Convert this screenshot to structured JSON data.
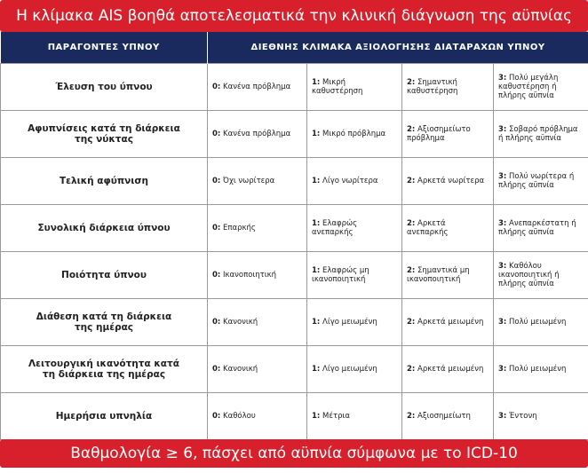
{
  "header": {
    "title": "Η κλίμακα AIS βοηθά αποτελεσματικά την κλινική διάγνωση της αϋπνίας"
  },
  "table": {
    "headers": [
      "ΠΑΡΑΓΟΝΤΕΣ ΥΠΝΟΥ",
      "ΔΙΕΘΝΗΣ ΚΛΙΜΑΚΑ ΑΞΙΟΛΟΓΗΣΗΣ ΔΙΑΤΑΡΑΧΩΝ ΥΠΝΟΥ"
    ],
    "rows": [
      {
        "factor": "Έλευση του ύπνου",
        "options": [
          {
            "score": "0:",
            "text": "Κανένα πρόβλημα"
          },
          {
            "score": "1:",
            "text": "Μικρή καθυστέρηση"
          },
          {
            "score": "2:",
            "text": "Σημαντική καθυστέρηση"
          },
          {
            "score": "3:",
            "text": "Πολύ μεγάλη καθυστέρηση ή πλήρης αϋπνία"
          }
        ]
      },
      {
        "factor": "Αφυπνίσεις κατά τη διάρκεια της νύκτας",
        "options": [
          {
            "score": "0:",
            "text": "Κανένα πρόβλημα"
          },
          {
            "score": "1:",
            "text": "Μικρό πρόβλημα"
          },
          {
            "score": "2:",
            "text": "Αξιοσημείωτο πρόβλημα"
          },
          {
            "score": "3:",
            "text": "Σοβαρό πρόβλημα ή πλήρης αϋπνία"
          }
        ]
      },
      {
        "factor": "Τελική αφύπνιση",
        "options": [
          {
            "score": "0:",
            "text": "Όχι νωρίτερα"
          },
          {
            "score": "1:",
            "text": "Λίγο νωρίτερα"
          },
          {
            "score": "2:",
            "text": "Αρκετά νωρίτερα"
          },
          {
            "score": "3:",
            "text": "Πολύ νωρίτερα ή πλήρης αϋπνία"
          }
        ]
      },
      {
        "factor": "Συνολική διάρκεια ύπνου",
        "options": [
          {
            "score": "0:",
            "text": "Επαρκής"
          },
          {
            "score": "1:",
            "text": "Ελαφρώς ανεπαρκής"
          },
          {
            "score": "2:",
            "text": "Αρκετά ανεπαρκής"
          },
          {
            "score": "3:",
            "text": "Ανεπαρκέστατη ή πλήρης αϋπνία"
          }
        ]
      },
      {
        "factor": "Ποιότητα ύπνου",
        "options": [
          {
            "score": "0:",
            "text": "Ικανοποιητική"
          },
          {
            "score": "1:",
            "text": "Ελαφρώς μη ικανοποιητική"
          },
          {
            "score": "2:",
            "text": "Σημαντικά μη ικανοποιητική"
          },
          {
            "score": "3:",
            "text": "Καθόλου ικανοποιητική ή πλήρης αϋπνία"
          }
        ]
      },
      {
        "factor": "Διάθεση κατά τη διάρκεια της ημέρας",
        "options": [
          {
            "score": "0:",
            "text": "Κανονική"
          },
          {
            "score": "1:",
            "text": "Λίγο μειωμένη"
          },
          {
            "score": "2:",
            "text": "Αρκετά μειωμένη"
          },
          {
            "score": "3:",
            "text": "Πολύ μειωμένη"
          }
        ]
      },
      {
        "factor": "Λειτουργική ικανότητα κατά τη διάρκεια της ημέρας",
        "options": [
          {
            "score": "0:",
            "text": "Κανονική"
          },
          {
            "score": "1:",
            "text": "Λίγο μειωμένη"
          },
          {
            "score": "2:",
            "text": "Αρκετά μειωμένη"
          },
          {
            "score": "3:",
            "text": "Πολύ μειωμένη"
          }
        ]
      },
      {
        "factor": "Ημερήσια υπνηλία",
        "options": [
          {
            "score": "0:",
            "text": "Καθόλου"
          },
          {
            "score": "1:",
            "text": "Μέτρια"
          },
          {
            "score": "2:",
            "text": "Αξιοσημείωτη"
          },
          {
            "score": "3:",
            "text": "Έντονη"
          }
        ]
      }
    ]
  },
  "footer": {
    "text": "Βαθμολογία ≥ 6, πάσχει από αϋπνία σύμφωνα με το ICD-10"
  }
}
